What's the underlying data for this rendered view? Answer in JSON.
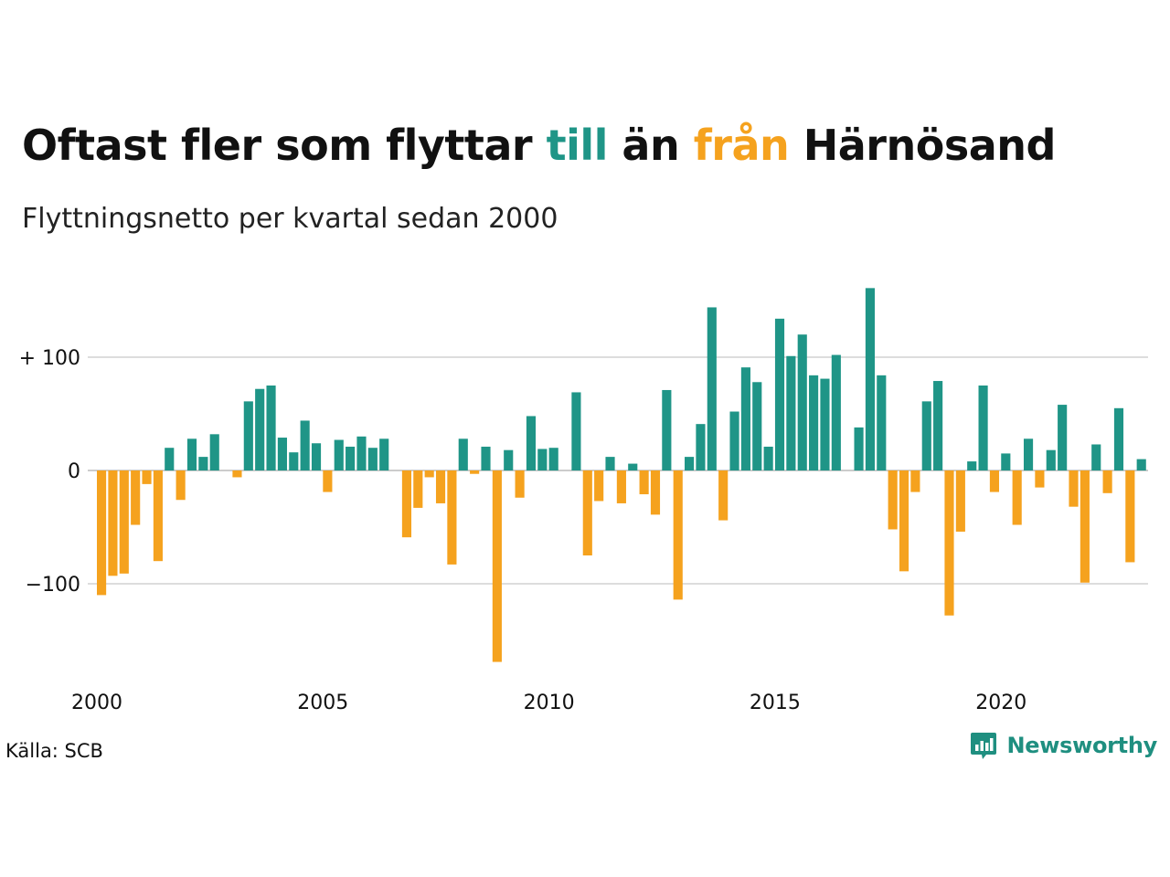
{
  "title": {
    "part1": "Oftast fler som flyttar ",
    "word_till": "till",
    "part2": " än ",
    "word_fran": "från",
    "part3": " Härnösand"
  },
  "subtitle": "Flyttningsnetto per kvartal sedan 2000",
  "source": "Källa: SCB",
  "brand": {
    "name": "Newsworthy",
    "icon": "newsworthy-logo-icon"
  },
  "colors": {
    "positive": "#1f9587",
    "negative": "#f5a21e",
    "grid": "#dddddd"
  },
  "chart_data": {
    "type": "bar",
    "title": "Oftast fler som flyttar till än från Härnösand",
    "subtitle": "Flyttningsnetto per kvartal sedan 2000",
    "xlabel": "",
    "ylabel": "",
    "x_start": 2000,
    "x_tick_labels": [
      "2000",
      "2005",
      "2010",
      "2015",
      "2020"
    ],
    "y_tick_labels": [
      "+ 100",
      "0",
      "−100"
    ],
    "y_ticks": [
      100,
      0,
      -100
    ],
    "ylim": [
      -170,
      165
    ],
    "grid": true,
    "values": [
      -110,
      -93,
      -91,
      -48,
      -12,
      -80,
      20,
      -26,
      28,
      12,
      32,
      0,
      -6,
      61,
      72,
      75,
      29,
      16,
      44,
      24,
      -19,
      27,
      21,
      30,
      20,
      28,
      0,
      -59,
      -33,
      -6,
      -29,
      -83,
      28,
      -3,
      21,
      -169,
      18,
      -24,
      48,
      19,
      20,
      0,
      69,
      -75,
      -27,
      12,
      -29,
      6,
      -21,
      -39,
      71,
      -114,
      12,
      41,
      144,
      -44,
      52,
      91,
      78,
      21,
      134,
      101,
      120,
      84,
      81,
      102,
      0,
      38,
      161,
      84,
      -52,
      -89,
      -19,
      61,
      79,
      -128,
      -54,
      8,
      75,
      -19,
      15,
      -48,
      28,
      -15,
      18,
      58,
      -32,
      -99,
      23,
      -20,
      55,
      -81,
      10
    ]
  }
}
